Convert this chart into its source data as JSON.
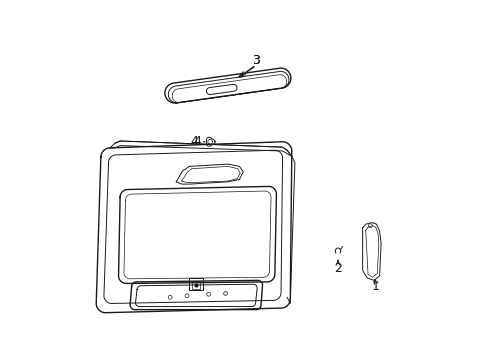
{
  "background_color": "#ffffff",
  "line_color": "#1a1a1a",
  "lw_main": 1.0,
  "lw_detail": 0.7,
  "lw_thin": 0.5
}
